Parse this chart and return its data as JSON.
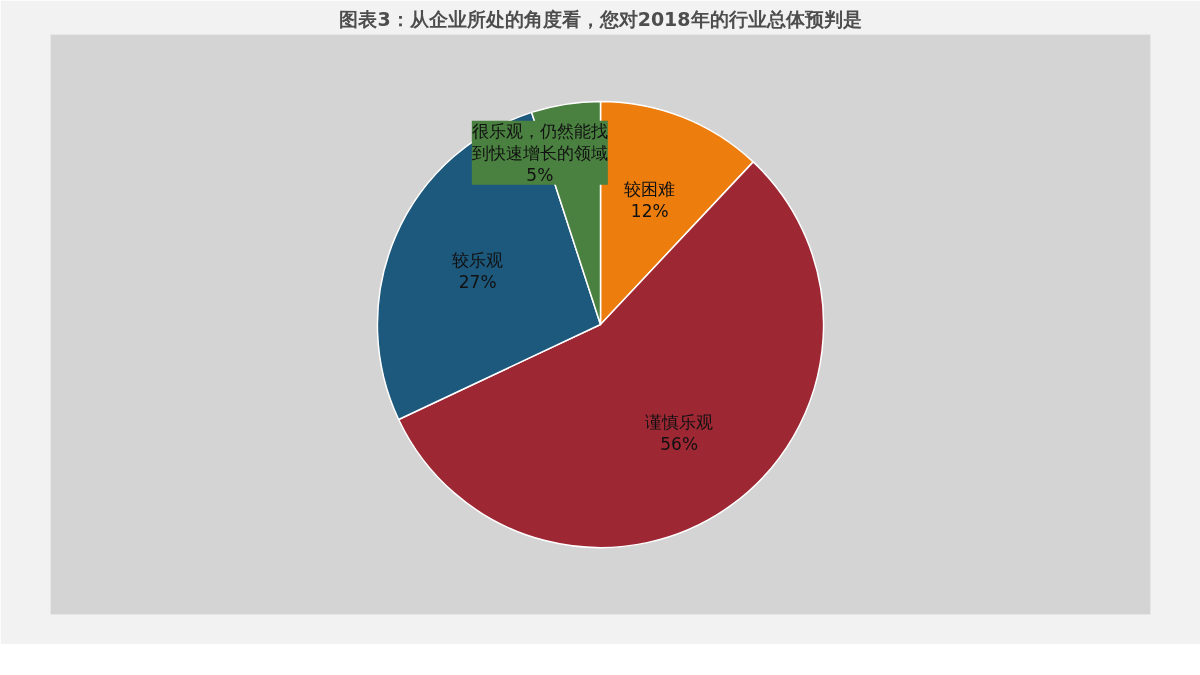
{
  "chart_data": {
    "type": "pie",
    "title": "图表3：从企业所处的角度看，您对2018年的行业总体预判是",
    "categories": [
      "较困难",
      "谨慎乐观",
      "较乐观",
      "很乐观，仍然能找到快速增长的领域"
    ],
    "values": [
      12,
      56,
      27,
      5
    ],
    "colors": [
      "#ed7d0c",
      "#9e2734",
      "#1d587d",
      "#4a8040"
    ],
    "value_labels": [
      "12%",
      "56%",
      "27%",
      "5%"
    ]
  }
}
